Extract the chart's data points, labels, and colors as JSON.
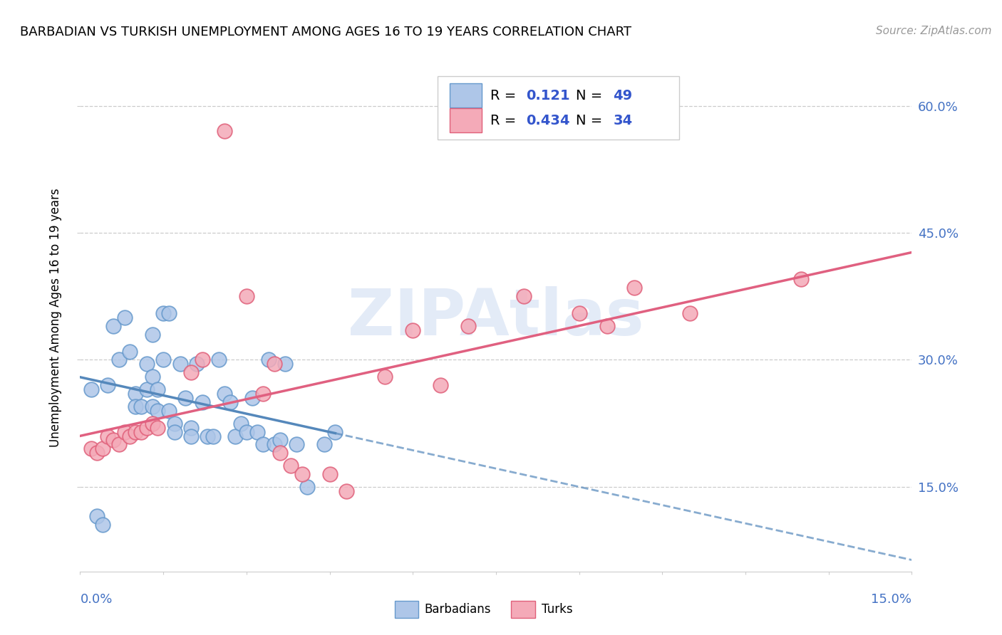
{
  "title": "BARBADIAN VS TURKISH UNEMPLOYMENT AMONG AGES 16 TO 19 YEARS CORRELATION CHART",
  "source": "Source: ZipAtlas.com",
  "ylabel": "Unemployment Among Ages 16 to 19 years",
  "ytick_labels": [
    "15.0%",
    "30.0%",
    "45.0%",
    "60.0%"
  ],
  "ytick_values": [
    0.15,
    0.3,
    0.45,
    0.6
  ],
  "xlim": [
    0.0,
    0.15
  ],
  "ylim": [
    0.05,
    0.65
  ],
  "watermark": "ZIPAtlas",
  "barbadian_color": "#aec6e8",
  "barbadian_edge": "#6699cc",
  "turkish_color": "#f4aab8",
  "turkish_edge": "#e0607a",
  "barbadian_line_color": "#5588bb",
  "turkish_line_color": "#e06080",
  "barbadian_x": [
    0.002,
    0.003,
    0.004,
    0.005,
    0.006,
    0.007,
    0.008,
    0.009,
    0.01,
    0.01,
    0.011,
    0.012,
    0.012,
    0.013,
    0.013,
    0.013,
    0.014,
    0.014,
    0.015,
    0.015,
    0.016,
    0.016,
    0.017,
    0.017,
    0.018,
    0.019,
    0.02,
    0.02,
    0.021,
    0.022,
    0.023,
    0.024,
    0.025,
    0.026,
    0.027,
    0.028,
    0.029,
    0.03,
    0.031,
    0.032,
    0.033,
    0.034,
    0.035,
    0.036,
    0.037,
    0.039,
    0.041,
    0.044,
    0.046
  ],
  "barbadian_y": [
    0.265,
    0.115,
    0.105,
    0.27,
    0.34,
    0.3,
    0.35,
    0.31,
    0.26,
    0.245,
    0.245,
    0.265,
    0.295,
    0.33,
    0.28,
    0.245,
    0.265,
    0.24,
    0.355,
    0.3,
    0.355,
    0.24,
    0.225,
    0.215,
    0.295,
    0.255,
    0.22,
    0.21,
    0.295,
    0.25,
    0.21,
    0.21,
    0.3,
    0.26,
    0.25,
    0.21,
    0.225,
    0.215,
    0.255,
    0.215,
    0.2,
    0.3,
    0.2,
    0.205,
    0.295,
    0.2,
    0.15,
    0.2,
    0.215
  ],
  "turkish_x": [
    0.002,
    0.003,
    0.004,
    0.005,
    0.006,
    0.007,
    0.008,
    0.009,
    0.01,
    0.011,
    0.012,
    0.013,
    0.014,
    0.02,
    0.022,
    0.026,
    0.03,
    0.033,
    0.035,
    0.036,
    0.038,
    0.04,
    0.045,
    0.048,
    0.055,
    0.06,
    0.065,
    0.07,
    0.08,
    0.09,
    0.095,
    0.1,
    0.11,
    0.13
  ],
  "turkish_y": [
    0.195,
    0.19,
    0.195,
    0.21,
    0.205,
    0.2,
    0.215,
    0.21,
    0.215,
    0.215,
    0.22,
    0.225,
    0.22,
    0.285,
    0.3,
    0.57,
    0.375,
    0.26,
    0.295,
    0.19,
    0.175,
    0.165,
    0.165,
    0.145,
    0.28,
    0.335,
    0.27,
    0.34,
    0.375,
    0.355,
    0.34,
    0.385,
    0.355,
    0.395
  ]
}
